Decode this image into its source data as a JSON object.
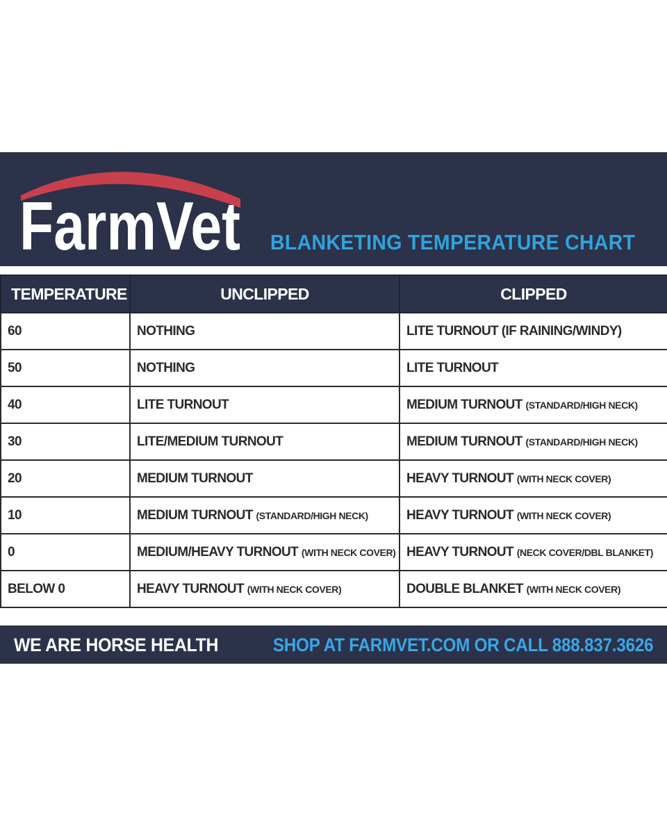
{
  "header": {
    "logo_text": "FarmVet",
    "title": "BLANKETING TEMPERATURE CHART",
    "colors": {
      "band": "#2b3249",
      "title": "#2fa3df",
      "logo_arc": "#c8404c"
    }
  },
  "table": {
    "columns": [
      "TEMPERATURE",
      "UNCLIPPED",
      "CLIPPED"
    ],
    "rows": [
      {
        "temp": "60",
        "unclipped": "NOTHING",
        "unclipped_note": "",
        "clipped": "LITE TURNOUT (IF RAINING/WINDY)",
        "clipped_note": ""
      },
      {
        "temp": "50",
        "unclipped": "NOTHING",
        "unclipped_note": "",
        "clipped": "LITE TURNOUT",
        "clipped_note": ""
      },
      {
        "temp": "40",
        "unclipped": "LITE TURNOUT",
        "unclipped_note": "",
        "clipped": "MEDIUM TURNOUT",
        "clipped_note": "(STANDARD/HIGH NECK)"
      },
      {
        "temp": "30",
        "unclipped": "LITE/MEDIUM TURNOUT",
        "unclipped_note": "",
        "clipped": "MEDIUM TURNOUT",
        "clipped_note": "(STANDARD/HIGH NECK)"
      },
      {
        "temp": "20",
        "unclipped": "MEDIUM TURNOUT",
        "unclipped_note": "",
        "clipped": "HEAVY TURNOUT",
        "clipped_note": "(WITH NECK COVER)"
      },
      {
        "temp": "10",
        "unclipped": "MEDIUM TURNOUT",
        "unclipped_note": "(STANDARD/HIGH NECK)",
        "clipped": "HEAVY TURNOUT",
        "clipped_note": "(WITH NECK COVER)"
      },
      {
        "temp": "0",
        "unclipped": "MEDIUM/HEAVY TURNOUT",
        "unclipped_note": "(WITH NECK COVER)",
        "clipped": "HEAVY TURNOUT",
        "clipped_note": "(NECK COVER/DBL BLANKET)"
      },
      {
        "temp": "BELOW 0",
        "unclipped": "HEAVY TURNOUT",
        "unclipped_note": "(WITH NECK COVER)",
        "clipped": "DOUBLE BLANKET",
        "clipped_note": "(WITH NECK COVER)"
      }
    ]
  },
  "footer": {
    "slogan": "WE ARE HORSE HEALTH",
    "shop": "SHOP AT FARMVET.COM OR CALL 888.837.3626",
    "shop_color": "#3aa6e6"
  }
}
